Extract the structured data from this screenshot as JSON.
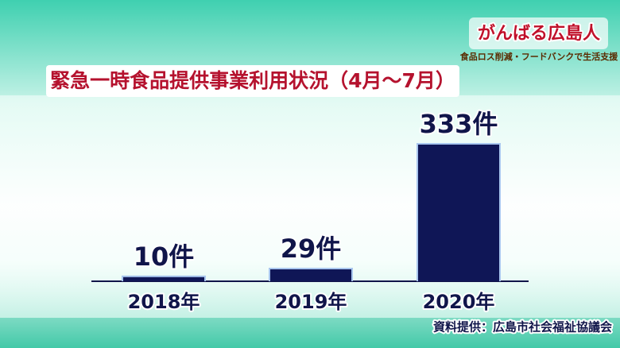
{
  "logo": {
    "title": "がんばる広島人",
    "subtitle": "食品ロス削減・フードバンクで生活支援"
  },
  "chart_data": {
    "type": "bar",
    "title": "緊急一時食品提供事業利用状況（4月～7月）",
    "categories": [
      "2018年",
      "2019年",
      "2020年"
    ],
    "values": [
      10,
      29,
      333
    ],
    "value_labels": [
      "10件",
      "29件",
      "333件"
    ],
    "color": "#0f1656",
    "source": "資料提供：広島市社会福祉協議会"
  }
}
